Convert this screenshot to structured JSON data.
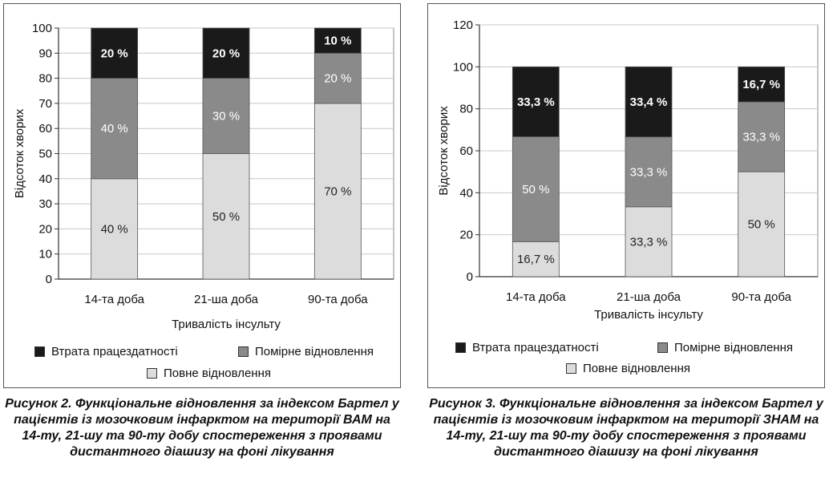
{
  "colors": {
    "loss": "#1a1a1a",
    "moderate": "#8a8a8a",
    "full": "#dcdcdc"
  },
  "chart_data": [
    {
      "type": "bar",
      "stacked": true,
      "categories": [
        "14-та доба",
        "21-ша доба",
        "90-та доба"
      ],
      "series": [
        {
          "name": "Повне відновлення",
          "values": [
            40,
            50,
            70
          ],
          "labels": [
            "40 %",
            "50 %",
            "70 %"
          ],
          "color_key": "full"
        },
        {
          "name": "Помірне відновлення",
          "values": [
            40,
            30,
            20
          ],
          "labels": [
            "40 %",
            "30 %",
            "20 %"
          ],
          "color_key": "moderate"
        },
        {
          "name": "Втрата працездатності",
          "values": [
            20,
            20,
            10
          ],
          "labels": [
            "20 %",
            "20 %",
            "10 %"
          ],
          "color_key": "loss"
        }
      ],
      "xlabel": "Тривалість інсульту",
      "ylabel": "Відсоток хворих",
      "ylim": [
        0,
        100
      ],
      "yticks": [
        0,
        10,
        20,
        30,
        40,
        50,
        60,
        70,
        80,
        90,
        100
      ],
      "grid": true,
      "legend_position": "bottom",
      "caption": "Рисунок 2. Функціональне відновлення за індексом Бартел у пацієнтів із мозочковим інфарктом на території ВАМ на 14-ту, 21-шу та 90-ту добу спостереження з проявами дистантного діашизу на фоні лікування"
    },
    {
      "type": "bar",
      "stacked": true,
      "categories": [
        "14-та доба",
        "21-ша доба",
        "90-та доба"
      ],
      "series": [
        {
          "name": "Повне відновлення",
          "values": [
            16.7,
            33.3,
            50
          ],
          "labels": [
            "16,7 %",
            "33,3 %",
            "50 %"
          ],
          "color_key": "full"
        },
        {
          "name": "Помірне відновлення",
          "values": [
            50,
            33.3,
            33.3
          ],
          "labels": [
            "50 %",
            "33,3 %",
            "33,3 %"
          ],
          "color_key": "moderate"
        },
        {
          "name": "Втрата працездатності",
          "values": [
            33.3,
            33.4,
            16.7
          ],
          "labels": [
            "33,3 %",
            "33,4 %",
            "16,7 %"
          ],
          "color_key": "loss"
        }
      ],
      "xlabel": "Тривалість інсульту",
      "ylabel": "Відсоток хворих",
      "ylim": [
        0,
        120
      ],
      "yticks": [
        0,
        20,
        40,
        60,
        80,
        100,
        120
      ],
      "grid": true,
      "legend_position": "bottom",
      "caption": "Рисунок 3. Функціональне відновлення за індексом Бартел у пацієнтів із мозочковим інфарктом на території ЗНАМ на 14-ту, 21-шу та 90-ту добу спостереження з проявами дистантного діашизу на фоні лікування"
    }
  ]
}
